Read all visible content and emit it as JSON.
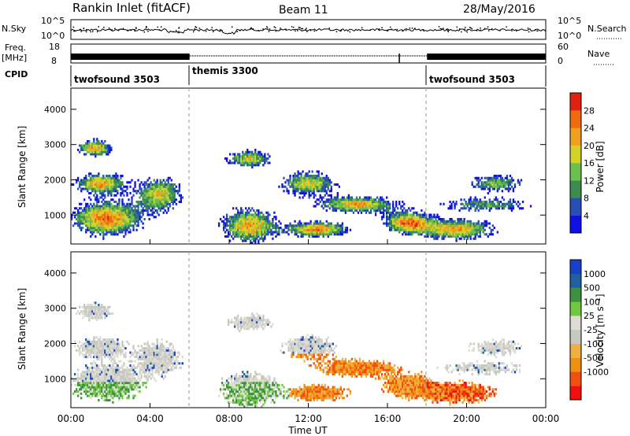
{
  "header": {
    "station": "Rankin Inlet (fitACF)",
    "beam": "Beam 11",
    "date": "28/May/2016"
  },
  "nsky_panel": {
    "left_label": "N.Sky",
    "right_label": "N.Search",
    "left_ticks": [
      "10^5",
      "10^0"
    ],
    "right_ticks": [
      "10^5",
      "10^0"
    ]
  },
  "freq_panel": {
    "left_label_1": "Freq.",
    "left_label_2": "[MHz]",
    "right_label": "Nave",
    "left_ticks": [
      "18",
      "8"
    ],
    "right_ticks": [
      "60",
      "0"
    ]
  },
  "cpid_panel": {
    "label": "CPID",
    "modes": [
      {
        "name": "twofsound 3503",
        "start_hour": 0,
        "end_hour": 6
      },
      {
        "name": "themis 3300",
        "start_hour": 6,
        "end_hour": 18
      },
      {
        "name": "twofsound 3503",
        "start_hour": 18,
        "end_hour": 24
      }
    ]
  },
  "colors": {
    "power_scale": [
      "#1010e0",
      "#2850b4",
      "#3c8c50",
      "#6cc050",
      "#d2d22a",
      "#f0a020",
      "#f06a10",
      "#e02010"
    ],
    "velocity_scale": [
      "#f01010",
      "#f05010",
      "#f09010",
      "#f0b040",
      "#c8c8c0",
      "#dcdcd4",
      "#70c840",
      "#3c9040",
      "#2060a0",
      "#1840c8"
    ]
  },
  "chart_data": [
    {
      "type": "heatmap",
      "name": "power",
      "ylabel": "Slant Range [km]",
      "yticks": [
        "4000",
        "3000",
        "2000",
        "1000"
      ],
      "ylim": [
        180,
        4600
      ],
      "colorbar_label": "Power [dB]",
      "colorbar_ticks": [
        "28",
        "24",
        "20",
        "16",
        "12",
        "8",
        "4"
      ],
      "colorbar_range": [
        0,
        32
      ]
    },
    {
      "type": "heatmap",
      "name": "velocity",
      "ylabel": "Slant Range [km]",
      "yticks": [
        "4000",
        "3000",
        "2000",
        "1000"
      ],
      "ylim": [
        180,
        4600
      ],
      "colorbar_label": "Velocity [m s⁻¹]",
      "colorbar_ticks": [
        "1000",
        "500",
        "100",
        "25",
        "-25",
        "-100",
        "-500",
        "-1000"
      ]
    }
  ],
  "x_axis": {
    "label": "Time UT",
    "ticks": [
      "00:00",
      "04:00",
      "08:00",
      "12:00",
      "16:00",
      "20:00",
      "00:00"
    ]
  }
}
